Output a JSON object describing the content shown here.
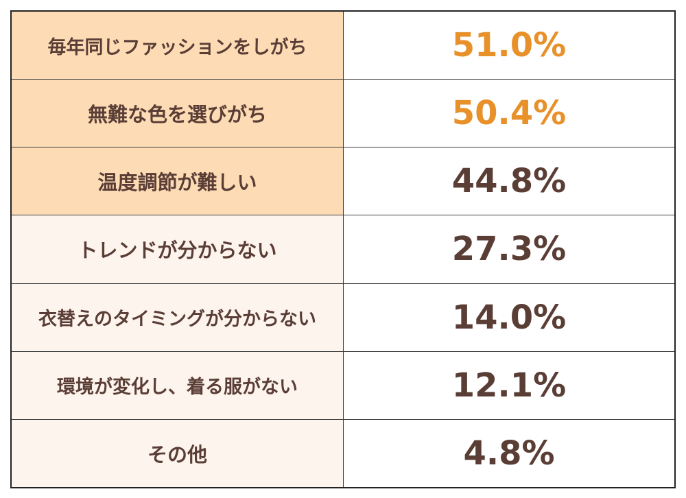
{
  "chart_data": {
    "type": "table",
    "colors": {
      "highlight_bg": "#fddcb5",
      "light_bg": "#fdf4ee",
      "highlight_value": "#e8912a",
      "text": "#5a3e36"
    },
    "rows": [
      {
        "label": "毎年同じファッションをしがち",
        "value": "51.0%",
        "highlight": true
      },
      {
        "label": "無難な色を選びがち",
        "value": "50.4%",
        "highlight": true
      },
      {
        "label": "温度調節が難しい",
        "value": "44.8%",
        "highlight": false
      },
      {
        "label": "トレンドが分からない",
        "value": "27.3%",
        "highlight": false
      },
      {
        "label": "衣替えのタイミングが分からない",
        "value": "14.0%",
        "highlight": false
      },
      {
        "label": "環境が変化し、着る服がない",
        "value": "12.1%",
        "highlight": false
      },
      {
        "label": "その他",
        "value": "4.8%",
        "highlight": false
      }
    ]
  }
}
